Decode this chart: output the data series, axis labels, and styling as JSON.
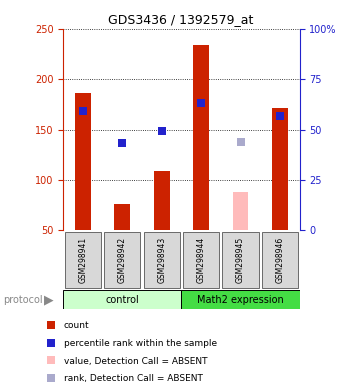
{
  "title": "GDS3436 / 1392579_at",
  "samples": [
    "GSM298941",
    "GSM298942",
    "GSM298943",
    "GSM298944",
    "GSM298945",
    "GSM298946"
  ],
  "bar_bottom": 50,
  "red_bars": [
    186,
    76,
    109,
    234,
    0,
    171
  ],
  "pink_bars": [
    0,
    0,
    0,
    0,
    88,
    0
  ],
  "pink_bar_color": "#ffbbbb",
  "blue_squares": [
    168,
    137,
    149,
    176,
    null,
    163
  ],
  "blue_sq_color": "#2222cc",
  "gray_squares": [
    null,
    null,
    null,
    null,
    138,
    null
  ],
  "gray_sq_color": "#aaaacc",
  "ylim_left": [
    50,
    250
  ],
  "ylim_right": [
    0,
    100
  ],
  "yticks_left": [
    50,
    100,
    150,
    200,
    250
  ],
  "yticks_right": [
    0,
    25,
    50,
    75,
    100
  ],
  "ytick_labels_right": [
    "0",
    "25",
    "50",
    "75",
    "100%"
  ],
  "left_axis_color": "#cc2200",
  "right_axis_color": "#2222cc",
  "red_bar_color": "#cc2200",
  "legend_items": [
    {
      "color": "#cc2200",
      "label": "count",
      "marker": "s"
    },
    {
      "color": "#2222cc",
      "label": "percentile rank within the sample",
      "marker": "s"
    },
    {
      "color": "#ffbbbb",
      "label": "value, Detection Call = ABSENT",
      "marker": "s"
    },
    {
      "color": "#aaaacc",
      "label": "rank, Detection Call = ABSENT",
      "marker": "s"
    }
  ],
  "control_label": "control",
  "math2_label": "Math2 expression",
  "ctrl_color": "#ccffcc",
  "math2_color": "#44dd44",
  "label_bg": "#d0d0d0",
  "bar_width": 0.4,
  "sq_size": 6
}
